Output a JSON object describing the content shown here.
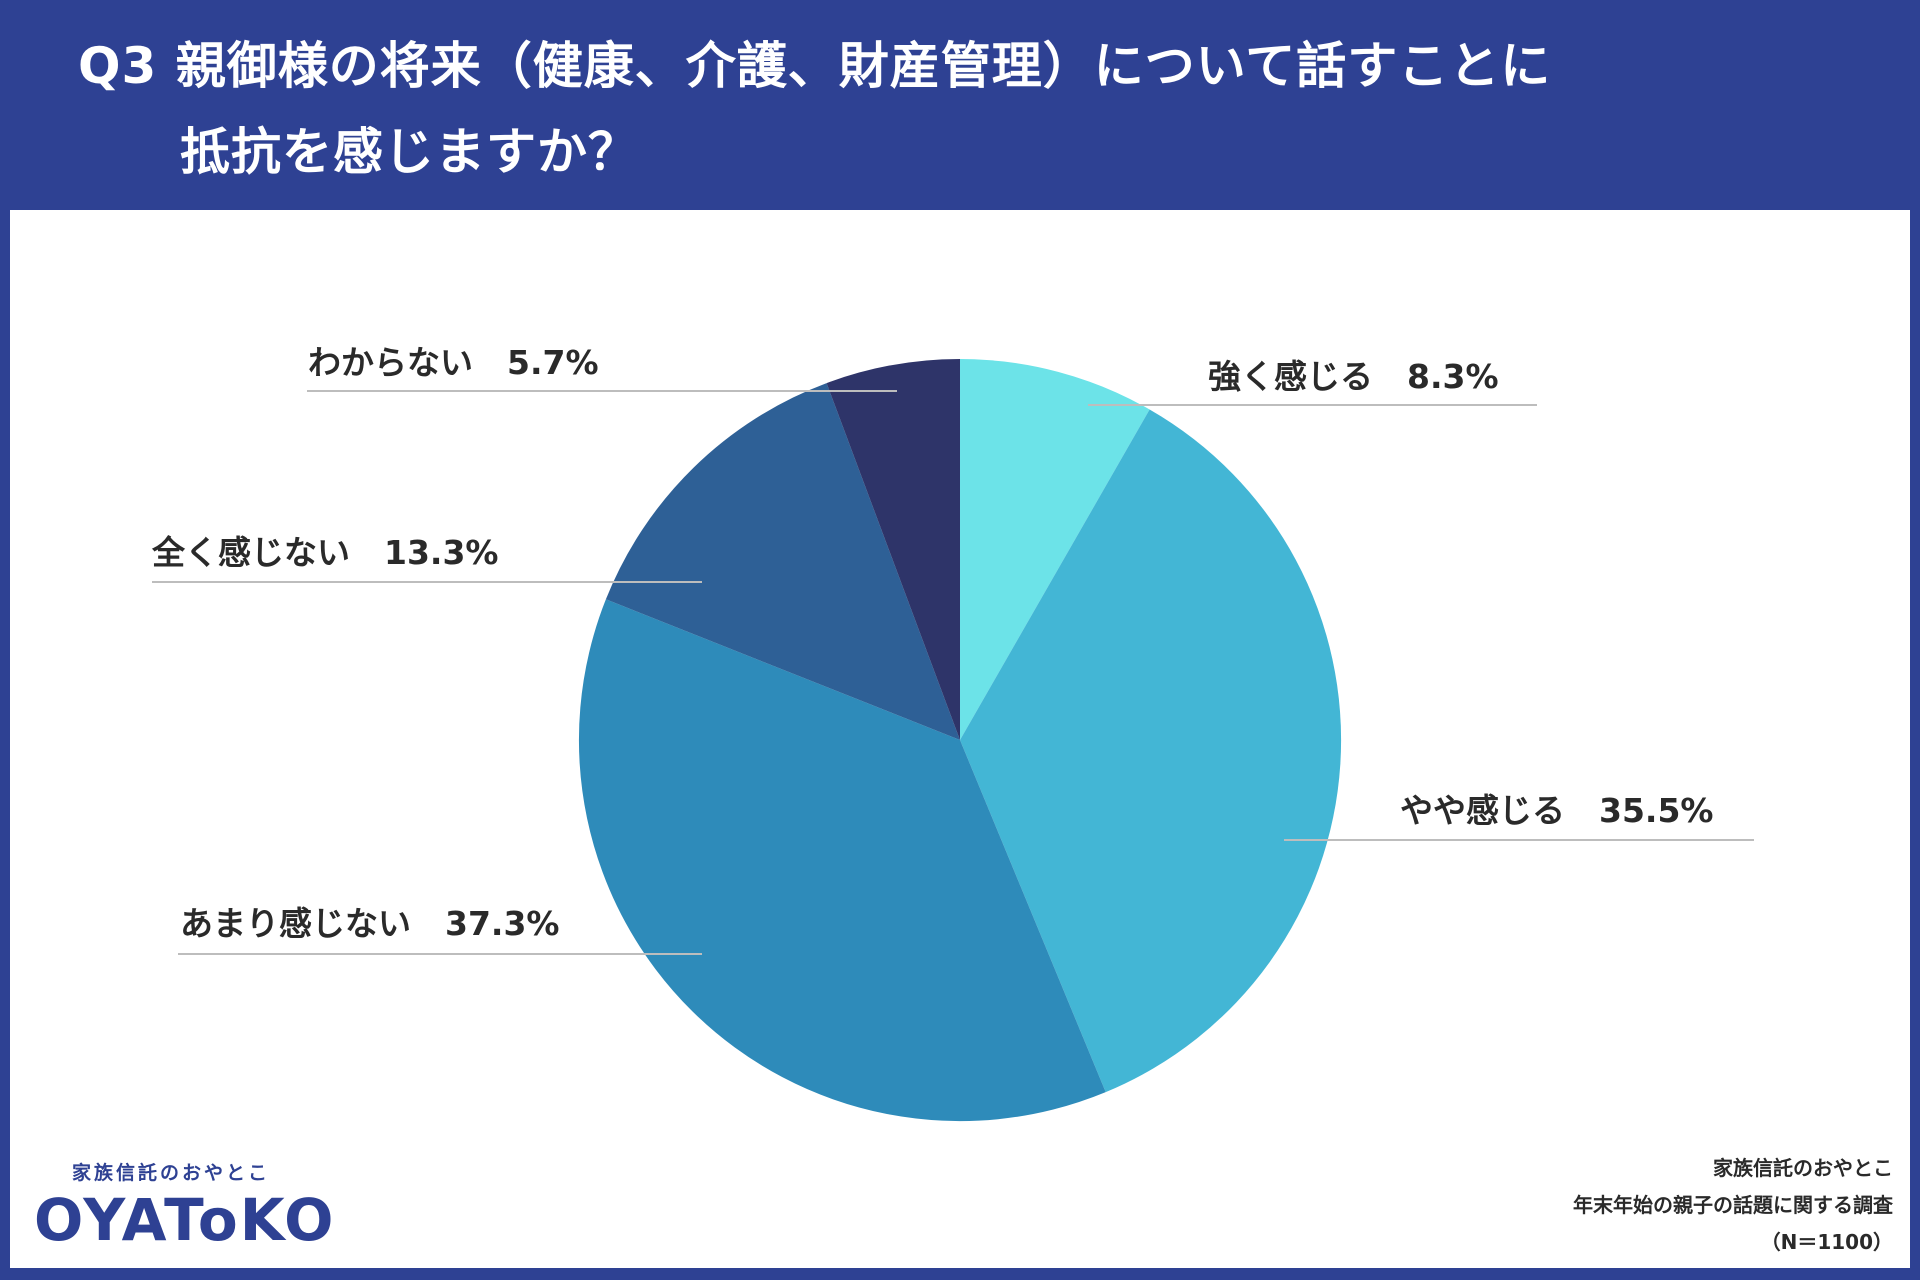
{
  "header": {
    "title_line1": "Q3 親御様の将来（健康、介護、財産管理）について話すことに",
    "title_line2": "抵抗を感じますか？",
    "background_color": "#2e4193"
  },
  "chart_data": {
    "type": "pie",
    "title": "Q3 親御様の将来（健康、介護、財産管理）について話すことに抵抗を感じますか？",
    "categories": [
      "強く感じる",
      "やや感じる",
      "あまり感じない",
      "全く感じない",
      "わからない"
    ],
    "values": [
      8.3,
      35.5,
      37.3,
      13.3,
      5.7
    ],
    "unit": "%",
    "start_angle": "12 o'clock, clockwise",
    "colors": [
      "#6ce3e8",
      "#43b6d5",
      "#2e8bba",
      "#2e6096",
      "#2e3469"
    ],
    "labels": [
      {
        "name": "強く感じる",
        "value": "8.3%"
      },
      {
        "name": "やや感じる",
        "value": "35.5%"
      },
      {
        "name": "あまり感じない",
        "value": "37.3%"
      },
      {
        "name": "全く感じない",
        "value": "13.3%"
      },
      {
        "name": "わからない",
        "value": "5.7%"
      }
    ],
    "n": 1100
  },
  "logo": {
    "subtitle": "家族信託のおやとこ",
    "wordmark": "OYAToKO"
  },
  "source": {
    "line1": "家族信託のおやとこ",
    "line2": "年末年始の親子の話題に関する調査",
    "line3": "（N＝1100）"
  }
}
